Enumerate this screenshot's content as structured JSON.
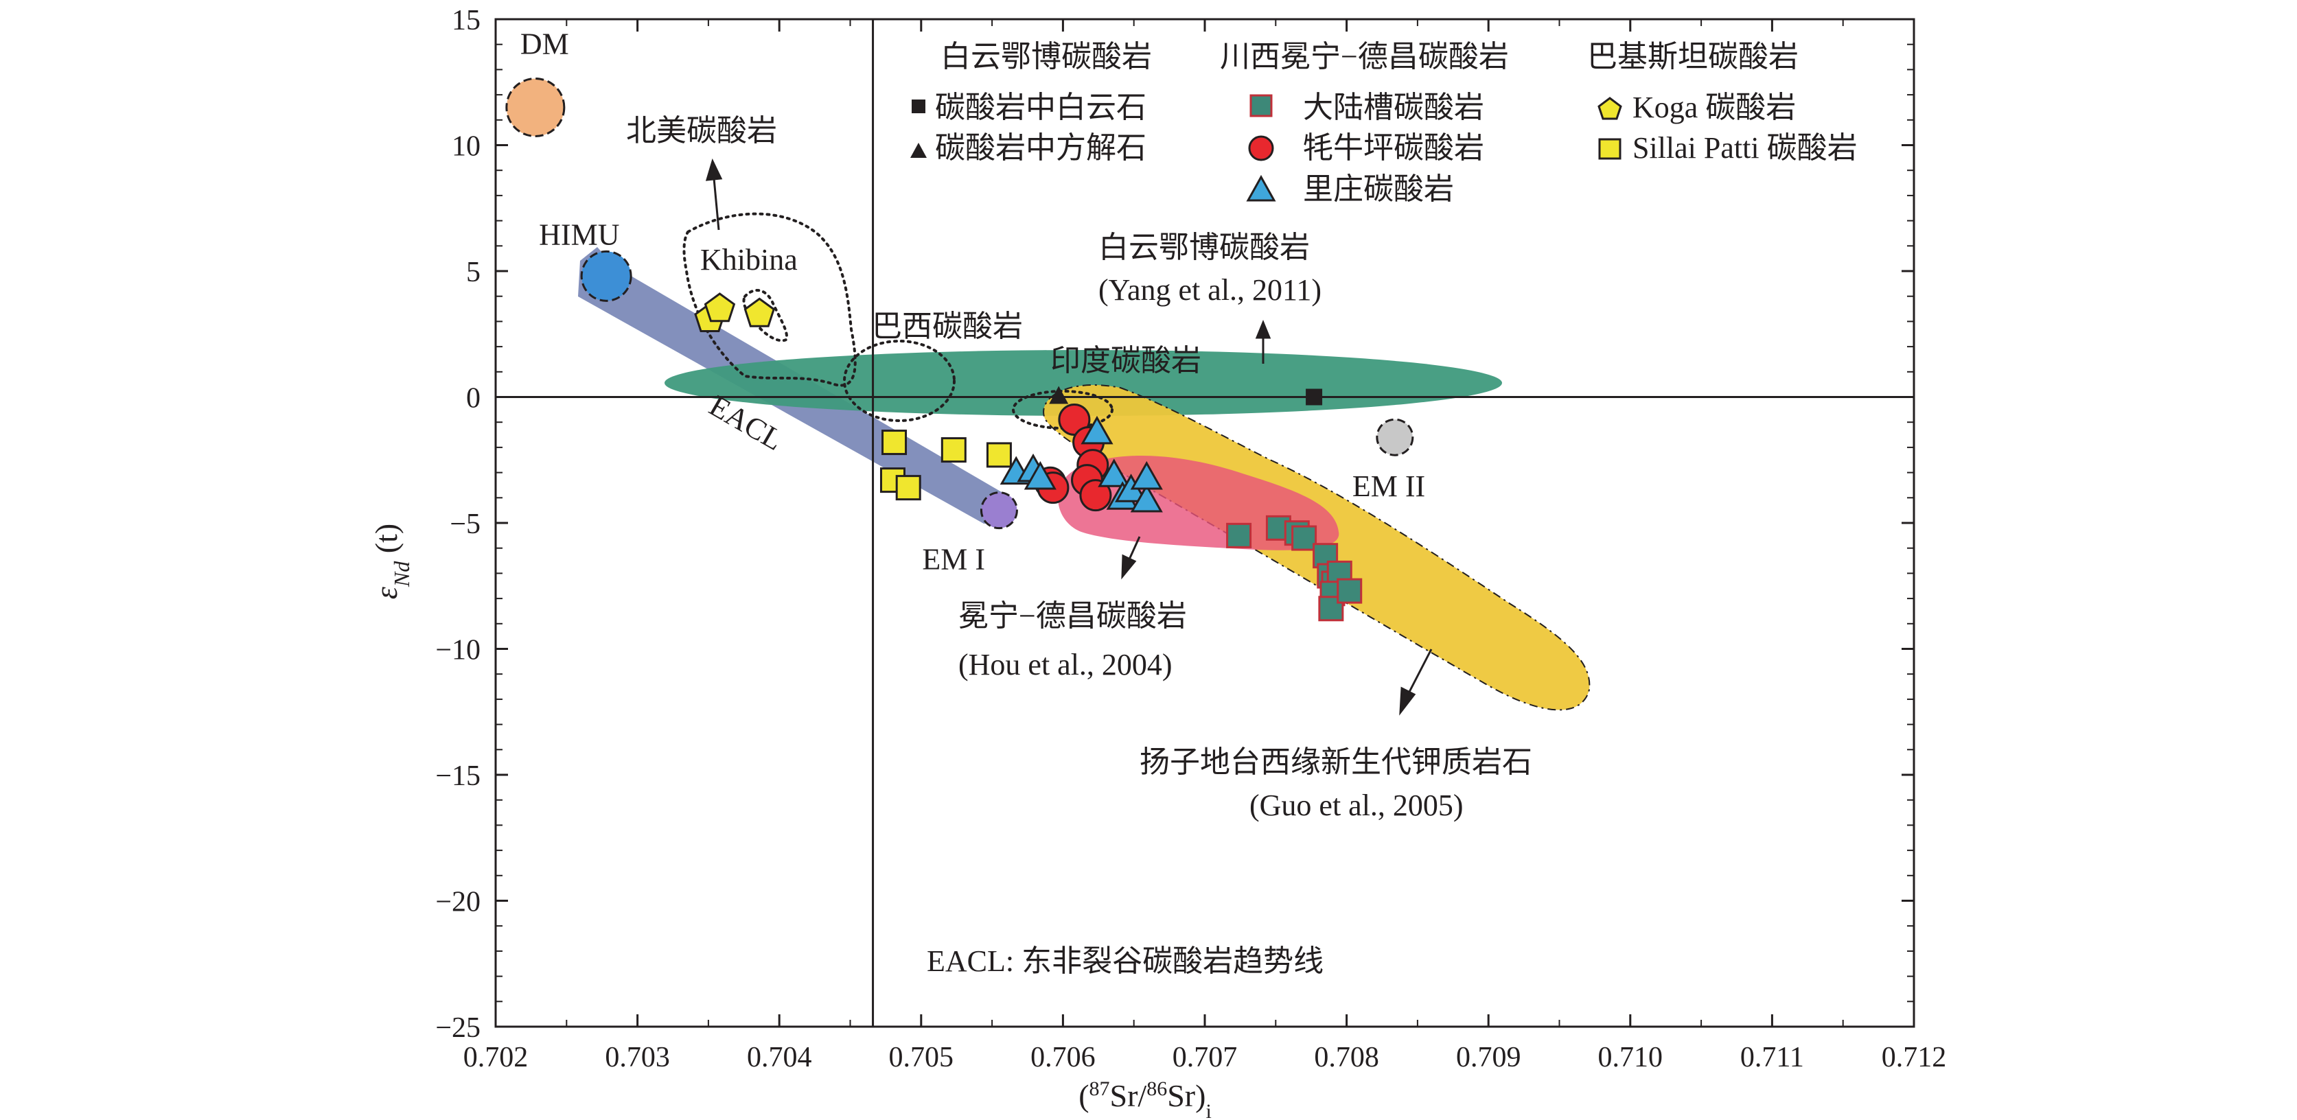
{
  "chart_data": {
    "type": "scatter",
    "x": {
      "label_main": "(",
      "label_sup": "87",
      "label_mid": "Sr/",
      "label_sup2": "86",
      "label_end": "Sr)",
      "label_sub": "i",
      "range": [
        0.702,
        0.712
      ],
      "ticks": [
        0.702,
        0.703,
        0.704,
        0.705,
        0.706,
        0.707,
        0.708,
        0.709,
        0.71,
        0.711,
        0.712
      ],
      "tick_labels": [
        "0.702",
        "0.703",
        "0.704",
        "0.705",
        "0.706",
        "0.707",
        "0.708",
        "0.709",
        "0.710",
        "0.711",
        "0.712"
      ]
    },
    "y": {
      "label_main": "ε",
      "label_sub": "Nd",
      "label_end": " (t)",
      "range": [
        -25,
        15
      ],
      "ticks": [
        15,
        10,
        5,
        0,
        -5,
        -10,
        -15,
        -20,
        -25
      ],
      "tick_labels": [
        "15",
        "10",
        "5",
        "0",
        "−5",
        "−10",
        "−15",
        "−20",
        "−25"
      ]
    },
    "reference_lines": {
      "x": 0.70466,
      "y": 0
    },
    "legend": {
      "headers": [
        "白云鄂博碳酸岩",
        "川西冕宁−德昌碳酸岩",
        "巴基斯坦碳酸岩"
      ],
      "items": [
        {
          "label": "碳酸岩中白云石",
          "marker": "square",
          "color": "#231f20"
        },
        {
          "label": "碳酸岩中方解石",
          "marker": "triangle",
          "color": "#231f20"
        },
        {
          "label": "大陆槽碳酸岩",
          "marker": "square",
          "color": "#3d8878"
        },
        {
          "label": "牦牛坪碳酸岩",
          "marker": "circle",
          "color": "#e8282e"
        },
        {
          "label": "里庄碳酸岩",
          "marker": "triangle",
          "color": "#3fa7dc"
        },
        {
          "label": "Koga 碳酸岩",
          "marker": "pentagon",
          "color": "#f0e62e"
        },
        {
          "label": "Sillai Patti 碳酸岩",
          "marker": "square",
          "color": "#f0e62e"
        }
      ]
    },
    "series": [
      {
        "name": "碳酸岩中白云石",
        "marker": "square",
        "color": "#231f20",
        "points": [
          [
            0.70777,
            0
          ]
        ]
      },
      {
        "name": "碳酸岩中方解石",
        "marker": "triangle",
        "color": "#231f20",
        "points": [
          [
            0.70597,
            0
          ]
        ]
      },
      {
        "name": "大陆槽碳酸岩",
        "marker": "square",
        "color": "#3d8878",
        "points": [
          [
            0.70724,
            -5.5
          ],
          [
            0.70752,
            -5.2
          ],
          [
            0.70765,
            -5.4
          ],
          [
            0.7077,
            -5.6
          ],
          [
            0.70785,
            -6.3
          ],
          [
            0.70788,
            -7.1
          ],
          [
            0.70791,
            -7.4
          ],
          [
            0.70795,
            -7.0
          ],
          [
            0.7079,
            -7.8
          ],
          [
            0.70789,
            -8.4
          ],
          [
            0.70802,
            -7.7
          ]
        ]
      },
      {
        "name": "牦牛坪碳酸岩",
        "marker": "circle",
        "color": "#e8282e",
        "points": [
          [
            0.70608,
            -0.9
          ],
          [
            0.70618,
            -1.8
          ],
          [
            0.70621,
            -2.7
          ],
          [
            0.70617,
            -3.3
          ],
          [
            0.70623,
            -3.9
          ],
          [
            0.70591,
            -3.4
          ],
          [
            0.70593,
            -3.6
          ]
        ]
      },
      {
        "name": "里庄碳酸岩",
        "marker": "triangle",
        "color": "#3fa7dc",
        "points": [
          [
            0.70624,
            -1.4
          ],
          [
            0.70567,
            -3.0
          ],
          [
            0.70579,
            -2.9
          ],
          [
            0.70584,
            -3.2
          ],
          [
            0.70636,
            -3.1
          ],
          [
            0.70642,
            -4.0
          ],
          [
            0.70648,
            -3.7
          ],
          [
            0.70659,
            -4.1
          ],
          [
            0.70659,
            -3.2
          ]
        ]
      },
      {
        "name": "Koga 碳酸岩",
        "marker": "pentagon",
        "color": "#f0e62e",
        "points": [
          [
            0.70351,
            3.1
          ],
          [
            0.70358,
            3.5
          ],
          [
            0.70386,
            3.3
          ]
        ]
      },
      {
        "name": "Sillai Patti 碳酸岩",
        "marker": "square",
        "color": "#f0e62e",
        "points": [
          [
            0.70481,
            -1.8
          ],
          [
            0.7048,
            -3.3
          ],
          [
            0.70491,
            -3.6
          ],
          [
            0.70523,
            -2.1
          ],
          [
            0.70555,
            -2.3
          ]
        ]
      }
    ],
    "fields": [
      {
        "name": "白云鄂博碳酸岩 field",
        "color": "#3f9a7d"
      },
      {
        "name": "扬子地台西缘新生代钾质岩石 field",
        "color": "#eec73a"
      },
      {
        "name": "冕宁−德昌碳酸岩 field",
        "color": "#e8537a"
      },
      {
        "name": "EACL band",
        "color": "#6d7cb0"
      }
    ],
    "end_members": [
      {
        "label": "DM",
        "color": "#f2b27e",
        "x": 0.70228,
        "y": 11.5
      },
      {
        "label": "HIMU",
        "color": "#3d8fd6",
        "x": 0.70278,
        "y": 4.8
      },
      {
        "label": "EM I",
        "color": "#9a7fd0",
        "x": 0.70555,
        "y": -4.5
      },
      {
        "label": "EM II",
        "color": "#c8c8c8",
        "x": 0.70834,
        "y": -1.6
      }
    ],
    "annotations": {
      "north_america": "北美碳酸岩",
      "khibina": "Khibina",
      "brazil": "巴西碳酸岩",
      "india": "印度碳酸岩",
      "eacl": "EACL",
      "bayan_obo_title": "白云鄂博碳酸岩",
      "bayan_obo_ref": "(Yang et al., 2011)",
      "mianning_title": "冕宁−德昌碳酸岩",
      "mianning_ref": "(Hou et al., 2004)",
      "yangtze_title": "扬子地台西缘新生代钾质岩石",
      "yangtze_ref": "(Guo et al., 2005)",
      "footnote": "EACL: 东非裂谷碳酸岩趋势线"
    }
  }
}
